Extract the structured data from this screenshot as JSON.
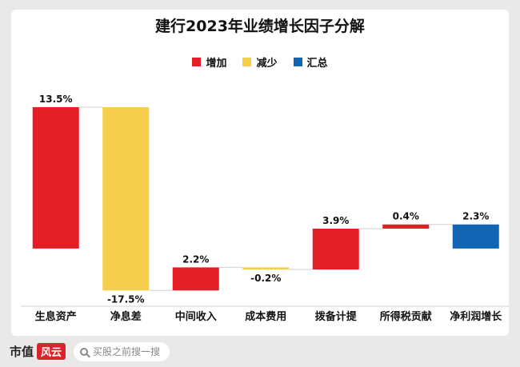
{
  "chart_data": {
    "type": "bar",
    "title": "建行2023年业绩增长因子分解",
    "legend": [
      {
        "label": "增加",
        "color": "#e31e24"
      },
      {
        "label": "减少",
        "color": "#f5cf4b"
      },
      {
        "label": "汇总",
        "color": "#1265b3"
      }
    ],
    "categories": [
      "生息资产",
      "净息差",
      "中间收入",
      "成本费用",
      "拨备计提",
      "所得税贡献",
      "净利润增长"
    ],
    "values": [
      13.5,
      -17.5,
      2.2,
      -0.2,
      3.9,
      0.4,
      2.3
    ],
    "data_labels": [
      "13.5%",
      "-17.5%",
      "2.2%",
      "-0.2%",
      "3.9%",
      "0.4%",
      "2.3%"
    ],
    "kinds": [
      "增加",
      "减少",
      "增加",
      "减少",
      "增加",
      "增加",
      "汇总"
    ],
    "legend_position": "top"
  },
  "footer": {
    "brand_name": "市值",
    "brand_mark": "风云",
    "search_placeholder": "买股之前搜一搜"
  }
}
